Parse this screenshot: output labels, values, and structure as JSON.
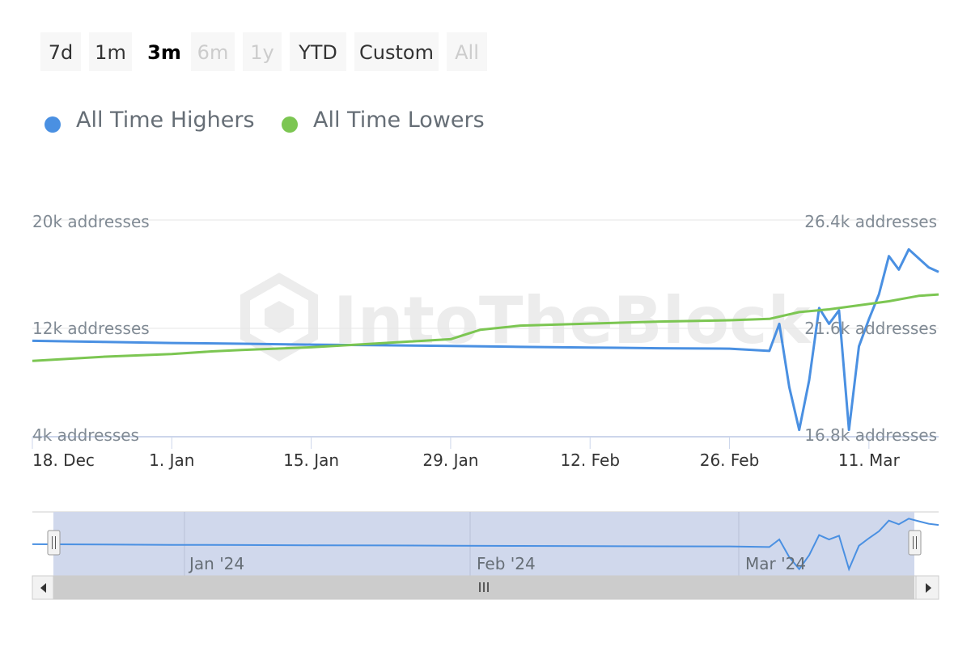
{
  "range_selector": {
    "buttons": [
      {
        "label": "7d",
        "state": "normal"
      },
      {
        "label": "1m",
        "state": "normal"
      },
      {
        "label": "3m",
        "state": "selected"
      },
      {
        "label": "6m",
        "state": "disabled"
      },
      {
        "label": "1y",
        "state": "disabled"
      },
      {
        "label": "YTD",
        "state": "normal"
      },
      {
        "label": "Custom",
        "state": "normal"
      },
      {
        "label": "All",
        "state": "disabled"
      }
    ]
  },
  "watermark": "IntoTheBlock",
  "colors": {
    "highers": "#4a90e2",
    "lowers": "#7cc652",
    "navigator_mask": "#d0d8ec",
    "scrollbar_track": "#cccccc"
  },
  "chart_data": {
    "type": "line",
    "x_start": "2023-12-18",
    "x_end": "2024-03-18",
    "x_ticks": [
      "18. Dec",
      "1. Jan",
      "15. Jan",
      "29. Jan",
      "12. Feb",
      "26. Feb",
      "11. Mar"
    ],
    "left_axis": {
      "ticks": [
        "4k addresses",
        "12k addresses",
        "20k addresses"
      ],
      "range": [
        4000,
        20000
      ]
    },
    "right_axis": {
      "ticks": [
        "16.8k addresses",
        "21.6k addresses",
        "26.4k addresses"
      ],
      "range": [
        16800,
        26400
      ]
    },
    "legend": {
      "position": "top-left"
    },
    "series": [
      {
        "name": "All Time Highers",
        "axis": "right",
        "color": "#4a90e2",
        "points": [
          [
            "2023-12-18",
            21.05
          ],
          [
            "2023-12-25",
            21.0
          ],
          [
            "2024-01-01",
            20.95
          ],
          [
            "2024-01-08",
            20.92
          ],
          [
            "2024-01-15",
            20.88
          ],
          [
            "2024-01-22",
            20.85
          ],
          [
            "2024-01-29",
            20.82
          ],
          [
            "2024-02-05",
            20.78
          ],
          [
            "2024-02-12",
            20.75
          ],
          [
            "2024-02-19",
            20.72
          ],
          [
            "2024-02-26",
            20.7
          ],
          [
            "2024-03-01",
            20.6
          ],
          [
            "2024-03-02",
            21.8
          ],
          [
            "2024-03-03",
            19.0
          ],
          [
            "2024-03-04",
            17.1
          ],
          [
            "2024-03-05",
            19.3
          ],
          [
            "2024-03-06",
            22.5
          ],
          [
            "2024-03-07",
            21.8
          ],
          [
            "2024-03-08",
            22.4
          ],
          [
            "2024-03-09",
            17.1
          ],
          [
            "2024-03-10",
            20.8
          ],
          [
            "2024-03-11",
            22.0
          ],
          [
            "2024-03-12",
            23.1
          ],
          [
            "2024-03-13",
            24.8
          ],
          [
            "2024-03-14",
            24.2
          ],
          [
            "2024-03-15",
            25.1
          ],
          [
            "2024-03-16",
            24.7
          ],
          [
            "2024-03-17",
            24.3
          ],
          [
            "2024-03-18",
            24.1
          ]
        ]
      },
      {
        "name": "All Time Lowers",
        "axis": "left",
        "color": "#7cc652",
        "points": [
          [
            "2023-12-18",
            9600
          ],
          [
            "2023-12-25",
            9900
          ],
          [
            "2024-01-01",
            10100
          ],
          [
            "2024-01-05",
            10300
          ],
          [
            "2024-01-08",
            10400
          ],
          [
            "2024-01-15",
            10600
          ],
          [
            "2024-01-22",
            10900
          ],
          [
            "2024-01-29",
            11200
          ],
          [
            "2024-02-01",
            11900
          ],
          [
            "2024-02-05",
            12200
          ],
          [
            "2024-02-12",
            12350
          ],
          [
            "2024-02-19",
            12500
          ],
          [
            "2024-02-26",
            12600
          ],
          [
            "2024-03-01",
            12700
          ],
          [
            "2024-03-04",
            13200
          ],
          [
            "2024-03-07",
            13400
          ],
          [
            "2024-03-10",
            13700
          ],
          [
            "2024-03-13",
            14000
          ],
          [
            "2024-03-16",
            14400
          ],
          [
            "2024-03-18",
            14500
          ]
        ]
      }
    ],
    "navigator": {
      "labels": [
        "Jan '24",
        "Feb '24",
        "Mar '24"
      ]
    }
  }
}
